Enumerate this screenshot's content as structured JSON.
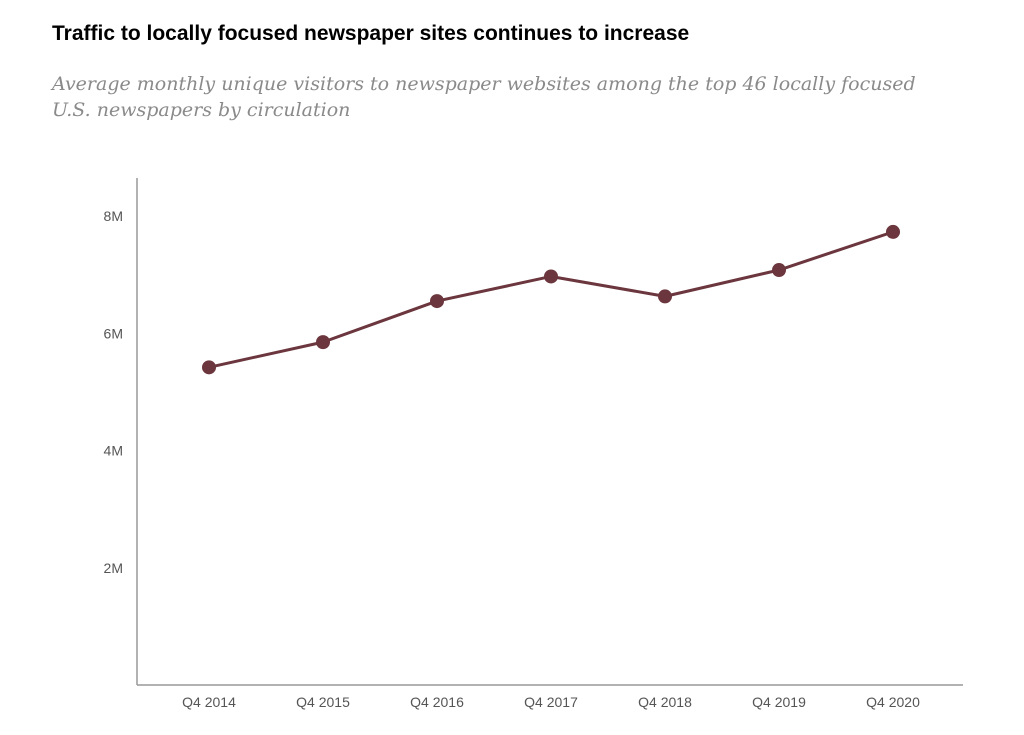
{
  "chart_data": {
    "type": "line",
    "title": "Traffic to locally focused newspaper sites continues to increase",
    "subtitle": "Average monthly unique visitors to newspaper websites among the top 46 locally focused U.S. newspapers by circulation",
    "xlabel": "",
    "ylabel": "",
    "categories": [
      "Q4 2014",
      "Q4 2015",
      "Q4 2016",
      "Q4 2017",
      "Q4 2018",
      "Q4 2019",
      "Q4 2020"
    ],
    "series": [
      {
        "name": "Average monthly unique visitors",
        "values": [
          5.42,
          5.85,
          6.55,
          6.97,
          6.63,
          7.08,
          7.73
        ]
      }
    ],
    "yticks": [
      2,
      4,
      6,
      8
    ],
    "ytick_labels": [
      "2M",
      "4M",
      "6M",
      "8M"
    ],
    "ylim": [
      0,
      8.65
    ],
    "line_color": "#6b363d",
    "axis_color": "#999999",
    "grid": false
  }
}
